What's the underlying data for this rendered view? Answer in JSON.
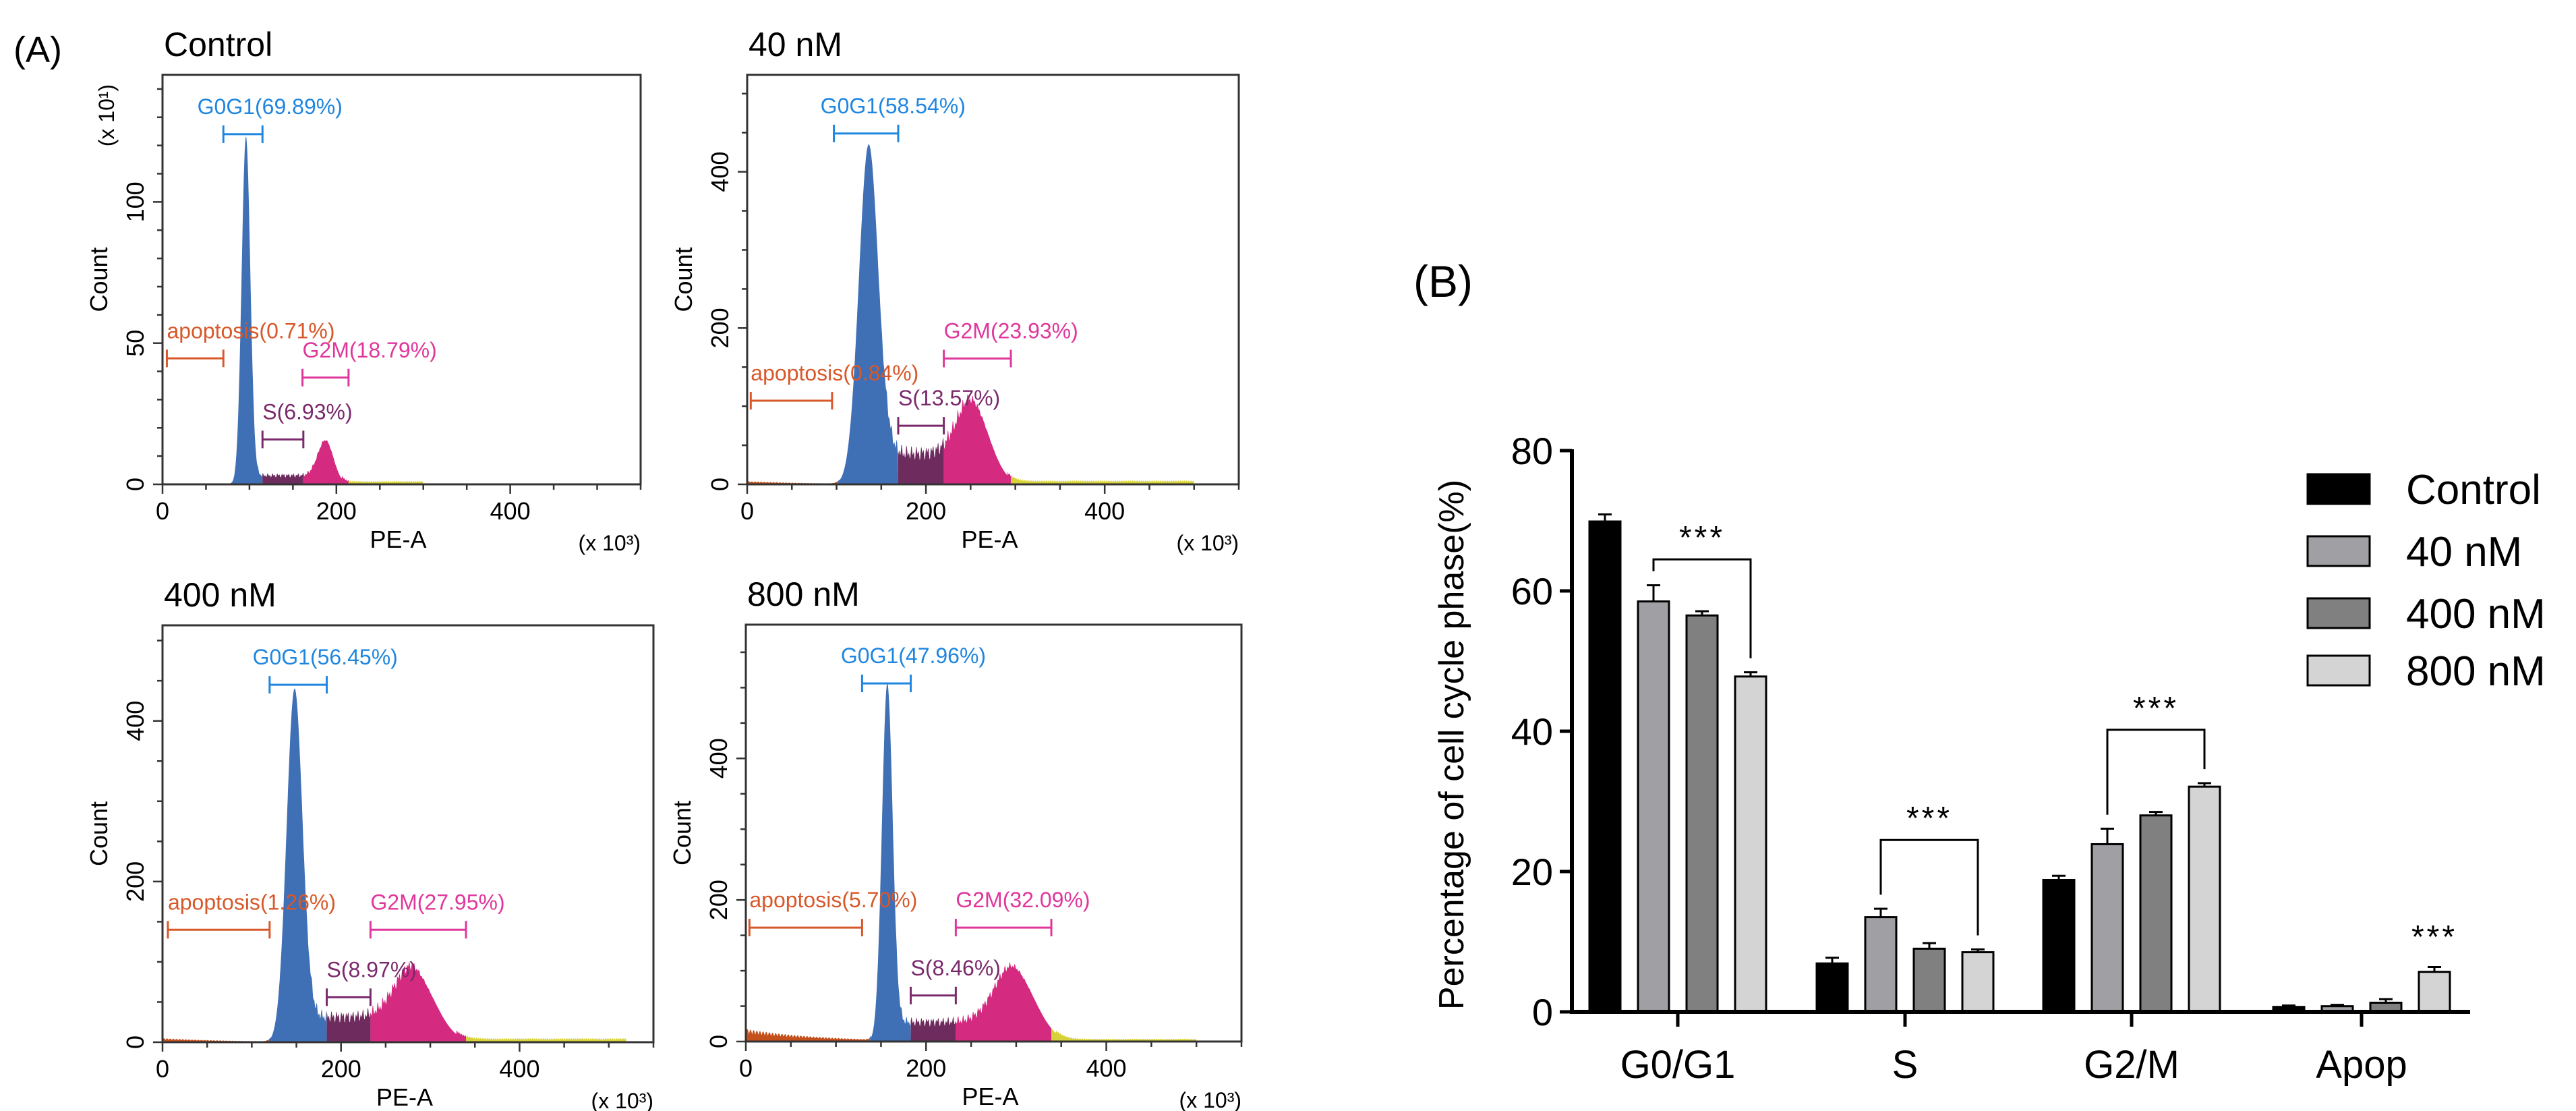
{
  "panel_labels": {
    "a": "(A)",
    "b": "(B)"
  },
  "colors": {
    "g0g1_fill": "#3f6fb5",
    "s_fill": "#6e2c5e",
    "g2m_fill": "#d42a80",
    "apoptosis_fill": "#c4501c",
    "tail_fill": "#d8d23a",
    "g0g1_gate": "#1f86e0",
    "s_gate": "#7a2a6c",
    "g2m_gate": "#e0379c",
    "apoptosis_gate": "#d8582a",
    "control_bar": "#000000",
    "nm40_bar": "#a0a0a4",
    "nm400_bar": "#808080",
    "nm800_bar": "#d4d4d4"
  },
  "chart_data": [
    {
      "type": "area",
      "title": "Control",
      "xlabel": "PE-A",
      "ylabel": "Count",
      "x_multiplier": "(x 10³)",
      "y_multiplier": "(x 10¹)",
      "xlim": [
        0,
        550
      ],
      "ylim": [
        0,
        145
      ],
      "x_ticks": [
        "0",
        "200",
        "400"
      ],
      "y_ticks": [
        "0",
        "50",
        "100"
      ],
      "y_tick_values": [
        0,
        50,
        100
      ],
      "y_minor_step": 10,
      "distribution": {
        "g1_peak": 96,
        "g1_sd": 5,
        "g1_height": 123,
        "s_level": 4,
        "g2_peak": 188,
        "g2_sd": 9,
        "g2_height": 14,
        "apop_level": 0.4,
        "tail_level": 1.2,
        "tail_end": 300
      },
      "gates": [
        {
          "name": "G0G1",
          "label": "G0G1(69.89%)",
          "range": [
            70,
            115
          ],
          "level": 124,
          "align": "middle"
        },
        {
          "name": "apoptosis",
          "label": "apoptosis(0.71%)",
          "range": [
            5,
            70
          ],
          "level": 44.6,
          "align": "start"
        },
        {
          "name": "G2M",
          "label": "G2M(18.79%)",
          "range": [
            161,
            214
          ],
          "level": 37.8,
          "align": "start"
        },
        {
          "name": "S",
          "label": "S(6.93%)",
          "range": [
            115,
            162
          ],
          "level": 15.9,
          "align": "start"
        }
      ]
    },
    {
      "type": "area",
      "title": "40 nM",
      "xlabel": "PE-A",
      "ylabel": "Count",
      "x_multiplier": "(x 10³)",
      "y_multiplier": "",
      "xlim": [
        0,
        550
      ],
      "ylim": [
        0,
        524
      ],
      "x_ticks": [
        "0",
        "200",
        "400"
      ],
      "y_ticks": [
        "0",
        "200",
        "400"
      ],
      "y_tick_values": [
        0,
        200,
        400
      ],
      "y_minor_step": 50,
      "distribution": {
        "g1_peak": 136,
        "g1_sd": 11,
        "g1_height": 435,
        "s_level": 50,
        "g2_peak": 255,
        "g2_sd": 18,
        "g2_height": 85,
        "apop_level": 4,
        "tail_level": 5,
        "tail_end": 500
      },
      "gates": [
        {
          "name": "G0G1",
          "label": "G0G1(58.54%)",
          "range": [
            97,
            169
          ],
          "level": 449,
          "align": "middle"
        },
        {
          "name": "apoptosis",
          "label": "apoptosis(0.84%)",
          "range": [
            4,
            95
          ],
          "level": 107,
          "align": "start"
        },
        {
          "name": "G2M",
          "label": "G2M(23.93%)",
          "range": [
            220,
            295
          ],
          "level": 161,
          "align": "start"
        },
        {
          "name": "S",
          "label": "S(13.57%)",
          "range": [
            169,
            220
          ],
          "level": 75,
          "align": "start"
        }
      ]
    },
    {
      "type": "area",
      "title": "400 nM",
      "xlabel": "PE-A",
      "ylabel": "Count",
      "x_multiplier": "(x 10³)",
      "y_multiplier": "",
      "xlim": [
        0,
        550
      ],
      "ylim": [
        0,
        519
      ],
      "x_ticks": [
        "0",
        "200",
        "400"
      ],
      "y_ticks": [
        "0",
        "200",
        "400"
      ],
      "y_tick_values": [
        0,
        200,
        400
      ],
      "y_minor_step": 50,
      "distribution": {
        "g1_peak": 148,
        "g1_sd": 9,
        "g1_height": 440,
        "s_level": 40,
        "g2_peak": 285,
        "g2_sd": 22,
        "g2_height": 75,
        "apop_level": 5,
        "tail_level": 5,
        "tail_end": 520
      },
      "gates": [
        {
          "name": "G0G1",
          "label": "G0G1(56.45%)",
          "range": [
            120,
            184
          ],
          "level": 445,
          "align": "middle"
        },
        {
          "name": "apoptosis",
          "label": "apoptosis(1.26%)",
          "range": [
            6,
            120
          ],
          "level": 140,
          "align": "start"
        },
        {
          "name": "G2M",
          "label": "G2M(27.95%)",
          "range": [
            233,
            340
          ],
          "level": 140,
          "align": "start"
        },
        {
          "name": "S",
          "label": "S(8.97%)",
          "range": [
            184,
            233
          ],
          "level": 56,
          "align": "start"
        }
      ]
    },
    {
      "type": "area",
      "title": "800 nM",
      "xlabel": "PE-A",
      "ylabel": "Count",
      "x_multiplier": "(x 10³)",
      "y_multiplier": "",
      "xlim": [
        0,
        550
      ],
      "ylim": [
        0,
        589
      ],
      "x_ticks": [
        "0",
        "200",
        "400"
      ],
      "y_ticks": [
        "0",
        "200",
        "400"
      ],
      "y_tick_values": [
        0,
        200,
        400
      ],
      "y_minor_step": 50,
      "distribution": {
        "g1_peak": 157,
        "g1_sd": 6,
        "g1_height": 505,
        "s_level": 35,
        "g2_peak": 300,
        "g2_sd": 22,
        "g2_height": 90,
        "apop_level": 18,
        "tail_level": 4,
        "tail_end": 500
      },
      "gates": [
        {
          "name": "G0G1",
          "label": "G0G1(47.96%)",
          "range": [
            129,
            183
          ],
          "level": 506,
          "align": "middle"
        },
        {
          "name": "apoptosis",
          "label": "apoptosis(5.70%)",
          "range": [
            4,
            129
          ],
          "level": 161,
          "align": "start"
        },
        {
          "name": "G2M",
          "label": "G2M(32.09%)",
          "range": [
            233,
            339
          ],
          "level": 161,
          "align": "start"
        },
        {
          "name": "S",
          "label": "S(8.46%)",
          "range": [
            183,
            233
          ],
          "level": 65,
          "align": "start"
        }
      ]
    },
    {
      "type": "bar",
      "ylabel": "Percentage of cell cycle phase(%)",
      "xlabel": "",
      "ylim": [
        0,
        80
      ],
      "y_ticks": [
        "0",
        "20",
        "40",
        "60",
        "80"
      ],
      "y_tick_values": [
        0,
        20,
        40,
        60,
        80
      ],
      "categories": [
        "G0/G1",
        "S",
        "G2/M",
        "Apop"
      ],
      "legend_position": "right",
      "series": [
        {
          "name": "Control",
          "values": [
            69.9,
            6.9,
            18.8,
            0.7
          ],
          "errors": [
            1.0,
            0.8,
            0.6,
            0.2
          ]
        },
        {
          "name": "40 nM",
          "values": [
            58.5,
            13.5,
            23.9,
            0.8
          ],
          "errors": [
            2.3,
            1.2,
            2.2,
            0.2
          ]
        },
        {
          "name": "400 nM",
          "values": [
            56.5,
            9.0,
            28.0,
            1.3
          ],
          "errors": [
            0.6,
            0.8,
            0.5,
            0.5
          ]
        },
        {
          "name": "800 nM",
          "values": [
            47.8,
            8.5,
            32.1,
            5.7
          ],
          "errors": [
            0.6,
            0.4,
            0.5,
            0.7
          ]
        }
      ],
      "significance": [
        {
          "category": 0,
          "from_series": 1,
          "to_series": 3,
          "label": "***",
          "level": 64.5
        },
        {
          "category": 1,
          "from_series": 1,
          "to_series": 3,
          "label": "***",
          "level": 24.5
        },
        {
          "category": 2,
          "from_series": 1,
          "to_series": 3,
          "label": "***",
          "level": 40.2
        },
        {
          "category": 3,
          "from_series": 3,
          "to_series": 3,
          "label": "***",
          "level": 7.6
        }
      ]
    }
  ]
}
